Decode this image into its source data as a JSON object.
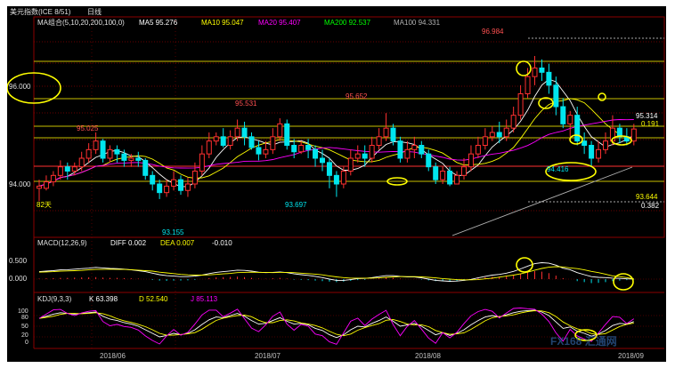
{
  "header": {
    "title": "美元指数(ICE 8/51)",
    "period": "日线",
    "ma_label": "MA组合(5,10,20,200,100,0)",
    "ma": [
      {
        "label": "MA5 95.276",
        "color": "#ffffff"
      },
      {
        "label": "MA10 95.047",
        "color": "#ffff00"
      },
      {
        "label": "MA20 95.407",
        "color": "#ff00ff"
      },
      {
        "label": "MA200 92.537",
        "color": "#00ff00"
      },
      {
        "label": "MA100 94.331",
        "color": "#b0b0b0"
      }
    ]
  },
  "macd_header": {
    "label": "MACD(12,26,9)",
    "items": [
      {
        "label": "DIFF 0.002",
        "color": "#ffffff"
      },
      {
        "label": "DEA 0.007",
        "color": "#ffff00"
      },
      {
        "label": "-0.010",
        "color": "#ffffff"
      }
    ]
  },
  "kdj_header": {
    "label": "KDJ(9,3,3)",
    "items": [
      {
        "label": "K 63.398",
        "color": "#ffffff"
      },
      {
        "label": "D 52.540",
        "color": "#ffff00"
      },
      {
        "label": "J 85.113",
        "color": "#ff00ff"
      }
    ]
  },
  "colors": {
    "up": "#ff3030",
    "down": "#00e5ee",
    "ma5": "#ffffff",
    "ma10": "#ffff00",
    "ma20": "#ff00ff",
    "ma100": "#b0b0b0",
    "grid": "#8b0000",
    "hline": "#c8c000",
    "circle": "#ffff00"
  },
  "watermark": "FX168 汇通网",
  "chart_data": {
    "type": "candlestick",
    "price_ticks": [
      "96.000",
      "94.000"
    ],
    "macd_ticks": [
      "0.500",
      "0.000"
    ],
    "kdj_ticks": [
      "100",
      "80",
      "50",
      "20",
      "0"
    ],
    "x_ticks": [
      "2018/06",
      "2018/07",
      "2018/08",
      "2018/09"
    ],
    "ylim": [
      92.8,
      97.6
    ],
    "annotations": {
      "high_label": "96.984",
      "low_label": "93.155",
      "peak_label": "95.652",
      "peak2_label": "95.531",
      "left_label": "95.025",
      "trough_label": "93.697",
      "recent_low_label": "94.416",
      "right_top": "95.314",
      "right_top_diff": "0.191",
      "right_bottom": "93.644",
      "right_bottom_diff": "0.382",
      "left_bottom": "82天"
    },
    "candles": [
      [
        93.9,
        93.95,
        93.6,
        94.1
      ],
      [
        93.9,
        94.05,
        93.85,
        94.2
      ],
      [
        94.05,
        94.2,
        93.95,
        94.3
      ],
      [
        94.2,
        94.4,
        94.1,
        94.55
      ],
      [
        94.4,
        94.3,
        94.1,
        94.5
      ],
      [
        94.3,
        94.4,
        94.2,
        94.5
      ],
      [
        94.4,
        94.6,
        94.3,
        94.75
      ],
      [
        94.6,
        94.8,
        94.5,
        94.95
      ],
      [
        94.8,
        95.0,
        94.7,
        95.2
      ],
      [
        95.0,
        94.6,
        94.5,
        95.05
      ],
      [
        94.6,
        94.8,
        94.5,
        94.9
      ],
      [
        94.8,
        94.7,
        94.5,
        94.9
      ],
      [
        94.7,
        94.55,
        94.4,
        94.8
      ],
      [
        94.55,
        94.6,
        94.4,
        94.7
      ],
      [
        94.6,
        94.55,
        94.4,
        94.75
      ],
      [
        94.55,
        94.2,
        94.1,
        94.6
      ],
      [
        94.2,
        94.0,
        93.85,
        94.3
      ],
      [
        94.0,
        93.8,
        93.65,
        94.1
      ],
      [
        93.8,
        93.95,
        93.7,
        94.1
      ],
      [
        93.95,
        94.1,
        93.85,
        94.3
      ],
      [
        94.1,
        93.85,
        93.75,
        94.2
      ],
      [
        93.85,
        94.0,
        93.7,
        94.15
      ],
      [
        94.0,
        94.3,
        93.9,
        94.5
      ],
      [
        94.3,
        94.7,
        94.2,
        94.9
      ],
      [
        94.7,
        95.0,
        94.6,
        95.2
      ],
      [
        95.0,
        95.1,
        94.9,
        95.2
      ],
      [
        95.1,
        94.9,
        94.85,
        95.3
      ],
      [
        94.9,
        95.1,
        94.8,
        95.25
      ],
      [
        95.1,
        95.3,
        95.0,
        95.5
      ],
      [
        95.3,
        95.1,
        94.9,
        95.45
      ],
      [
        95.1,
        94.85,
        94.8,
        95.2
      ],
      [
        94.85,
        94.7,
        94.55,
        95.0
      ],
      [
        94.7,
        94.8,
        94.6,
        95.0
      ],
      [
        94.8,
        95.1,
        94.7,
        95.3
      ],
      [
        95.1,
        95.4,
        95.0,
        95.53
      ],
      [
        95.4,
        94.9,
        94.8,
        95.5
      ],
      [
        94.9,
        94.75,
        94.6,
        95.05
      ],
      [
        94.75,
        94.9,
        94.7,
        95.0
      ],
      [
        94.9,
        94.8,
        94.6,
        95.05
      ],
      [
        94.8,
        94.6,
        94.4,
        94.9
      ],
      [
        94.6,
        94.5,
        94.3,
        94.8
      ],
      [
        94.5,
        94.2,
        93.9,
        94.6
      ],
      [
        94.2,
        94.0,
        93.7,
        94.3
      ],
      [
        94.0,
        94.3,
        93.9,
        94.4
      ],
      [
        94.3,
        94.6,
        94.2,
        94.8
      ],
      [
        94.6,
        94.7,
        94.5,
        94.9
      ],
      [
        94.7,
        94.6,
        94.4,
        94.9
      ],
      [
        94.6,
        94.9,
        94.5,
        95.1
      ],
      [
        94.9,
        95.1,
        94.8,
        95.3
      ],
      [
        95.1,
        95.3,
        95.0,
        95.65
      ],
      [
        95.3,
        95.0,
        94.9,
        95.4
      ],
      [
        95.0,
        94.6,
        94.5,
        95.1
      ],
      [
        94.6,
        94.8,
        94.5,
        95.0
      ],
      [
        94.8,
        94.9,
        94.6,
        95.1
      ],
      [
        94.9,
        94.7,
        94.6,
        95.0
      ],
      [
        94.7,
        94.4,
        94.3,
        94.8
      ],
      [
        94.4,
        94.1,
        94.0,
        94.5
      ],
      [
        94.1,
        94.3,
        94.0,
        94.4
      ],
      [
        94.3,
        94.0,
        93.95,
        94.4
      ],
      [
        94.0,
        94.2,
        94.0,
        94.3
      ],
      [
        94.2,
        94.4,
        94.1,
        94.6
      ],
      [
        94.4,
        94.7,
        94.3,
        94.9
      ],
      [
        94.7,
        94.9,
        94.6,
        95.1
      ],
      [
        94.9,
        95.1,
        94.8,
        95.3
      ],
      [
        95.1,
        95.2,
        95.0,
        95.35
      ],
      [
        95.2,
        95.1,
        94.95,
        95.45
      ],
      [
        95.1,
        95.3,
        95.0,
        95.5
      ],
      [
        95.3,
        95.6,
        95.2,
        95.8
      ],
      [
        95.6,
        96.1,
        95.5,
        96.3
      ],
      [
        96.1,
        96.5,
        96.0,
        96.7
      ],
      [
        96.5,
        96.7,
        96.3,
        96.98
      ],
      [
        96.7,
        96.6,
        96.4,
        96.9
      ],
      [
        96.6,
        96.3,
        96.1,
        96.8
      ],
      [
        96.3,
        95.8,
        95.6,
        96.5
      ],
      [
        95.8,
        95.4,
        95.3,
        96.0
      ],
      [
        95.4,
        95.6,
        95.1,
        95.7
      ],
      [
        95.6,
        95.0,
        94.9,
        95.8
      ],
      [
        95.0,
        94.9,
        94.7,
        95.2
      ],
      [
        94.9,
        94.6,
        94.42,
        95.0
      ],
      [
        94.6,
        94.8,
        94.5,
        95.0
      ],
      [
        94.8,
        95.0,
        94.7,
        95.2
      ],
      [
        95.0,
        95.3,
        94.9,
        95.6
      ],
      [
        95.3,
        95.1,
        94.95,
        95.4
      ],
      [
        95.1,
        95.0,
        94.9,
        95.3
      ],
      [
        95.0,
        95.28,
        94.9,
        95.4
      ]
    ],
    "macd_hist": [
      0.02,
      0.03,
      0.04,
      0.05,
      0.05,
      0.06,
      0.07,
      0.07,
      0.08,
      0.06,
      0.05,
      0.05,
      0.04,
      0.03,
      0.02,
      0.0,
      -0.03,
      -0.06,
      -0.07,
      -0.06,
      -0.06,
      -0.05,
      -0.03,
      0.0,
      0.04,
      0.07,
      0.08,
      0.09,
      0.1,
      0.08,
      0.05,
      0.02,
      0.01,
      0.03,
      0.05,
      0.02,
      -0.02,
      -0.03,
      -0.04,
      -0.06,
      -0.08,
      -0.1,
      -0.12,
      -0.1,
      -0.07,
      -0.04,
      -0.03,
      0.0,
      0.03,
      0.06,
      0.05,
      0.02,
      0.0,
      0.01,
      -0.02,
      -0.05,
      -0.08,
      -0.08,
      -0.09,
      -0.07,
      -0.04,
      0.0,
      0.04,
      0.08,
      0.1,
      0.1,
      0.12,
      0.16,
      0.22,
      0.28,
      0.32,
      0.3,
      0.24,
      0.14,
      0.04,
      0.0,
      -0.08,
      -0.12,
      -0.16,
      -0.15,
      -0.12,
      -0.08,
      -0.06,
      -0.04,
      -0.01
    ],
    "diff": [
      0.3,
      0.32,
      0.34,
      0.37,
      0.38,
      0.4,
      0.42,
      0.44,
      0.47,
      0.45,
      0.43,
      0.42,
      0.4,
      0.37,
      0.34,
      0.3,
      0.24,
      0.18,
      0.14,
      0.12,
      0.1,
      0.1,
      0.12,
      0.16,
      0.22,
      0.27,
      0.3,
      0.33,
      0.36,
      0.35,
      0.32,
      0.28,
      0.26,
      0.27,
      0.29,
      0.26,
      0.21,
      0.18,
      0.15,
      0.11,
      0.06,
      0.0,
      -0.05,
      -0.05,
      -0.02,
      0.02,
      0.03,
      0.06,
      0.1,
      0.14,
      0.14,
      0.11,
      0.09,
      0.09,
      0.05,
      0.0,
      -0.05,
      -0.07,
      -0.09,
      -0.08,
      -0.05,
      -0.01,
      0.05,
      0.11,
      0.16,
      0.19,
      0.24,
      0.31,
      0.41,
      0.52,
      0.62,
      0.66,
      0.64,
      0.56,
      0.44,
      0.38,
      0.26,
      0.18,
      0.1,
      0.07,
      0.06,
      0.04,
      0.03,
      0.01,
      0.002
    ],
    "dea": [
      0.28,
      0.29,
      0.3,
      0.32,
      0.33,
      0.34,
      0.35,
      0.37,
      0.39,
      0.39,
      0.4,
      0.39,
      0.39,
      0.38,
      0.36,
      0.34,
      0.32,
      0.28,
      0.25,
      0.22,
      0.19,
      0.17,
      0.16,
      0.16,
      0.17,
      0.19,
      0.21,
      0.23,
      0.26,
      0.27,
      0.28,
      0.27,
      0.27,
      0.26,
      0.27,
      0.27,
      0.26,
      0.24,
      0.22,
      0.2,
      0.17,
      0.13,
      0.09,
      0.06,
      0.04,
      0.04,
      0.04,
      0.04,
      0.05,
      0.07,
      0.09,
      0.1,
      0.1,
      0.1,
      0.09,
      0.07,
      0.05,
      0.02,
      0.0,
      -0.02,
      -0.03,
      -0.03,
      -0.02,
      0.01,
      0.04,
      0.08,
      0.12,
      0.16,
      0.21,
      0.28,
      0.36,
      0.43,
      0.48,
      0.5,
      0.49,
      0.45,
      0.42,
      0.37,
      0.31,
      0.26,
      0.2,
      0.13,
      0.1,
      0.06,
      0.007
    ],
    "k": [
      72,
      78,
      84,
      88,
      86,
      84,
      86,
      88,
      90,
      78,
      70,
      66,
      60,
      56,
      50,
      40,
      30,
      20,
      24,
      30,
      26,
      30,
      40,
      55,
      68,
      76,
      74,
      80,
      86,
      78,
      66,
      56,
      58,
      66,
      74,
      64,
      56,
      58,
      54,
      44,
      38,
      26,
      18,
      26,
      40,
      50,
      48,
      58,
      66,
      76,
      64,
      50,
      54,
      58,
      50,
      38,
      26,
      32,
      24,
      30,
      40,
      54,
      66,
      76,
      80,
      76,
      82,
      88,
      92,
      94,
      95,
      90,
      80,
      62,
      44,
      48,
      36,
      30,
      22,
      28,
      38,
      52,
      58,
      56,
      63
    ]
  }
}
